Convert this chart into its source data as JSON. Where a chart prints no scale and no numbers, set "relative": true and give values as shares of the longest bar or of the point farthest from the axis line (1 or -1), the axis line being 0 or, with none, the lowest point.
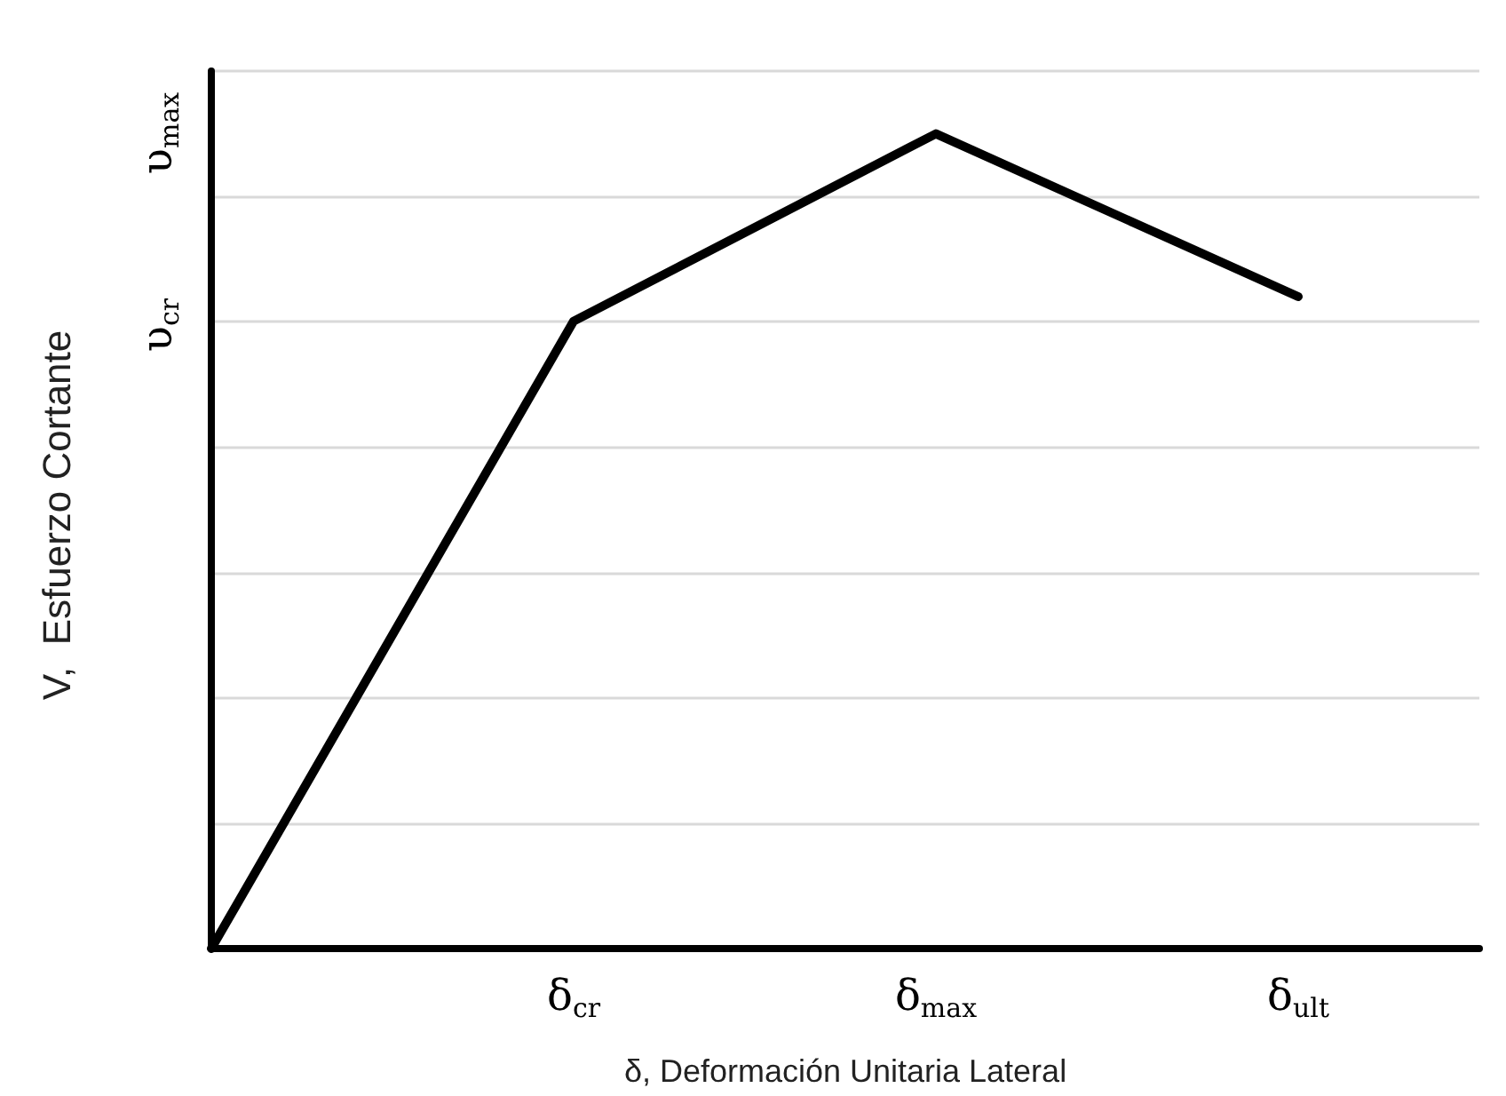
{
  "chart_data": {
    "type": "line",
    "relative": true,
    "xlabel": "δ, Deformación Unitaria Lateral",
    "ylabel": "V,  Esfuerzo Cortante",
    "categories": [
      null,
      null,
      "δ$_{cr}$",
      null,
      "δ$_{max}$",
      null,
      "δ$_{ult}$",
      null
    ],
    "series": [
      {
        "color": "#000000",
        "values": [
          0,
          null,
          0.77,
          null,
          1,
          null,
          0.8,
          null
        ]
      }
    ],
    "annotations": [
      "υ$_{cr}$",
      "υ$_{max}$"
    ],
    "grid": "y",
    "marker": "none",
    "line_style": "solid"
  }
}
